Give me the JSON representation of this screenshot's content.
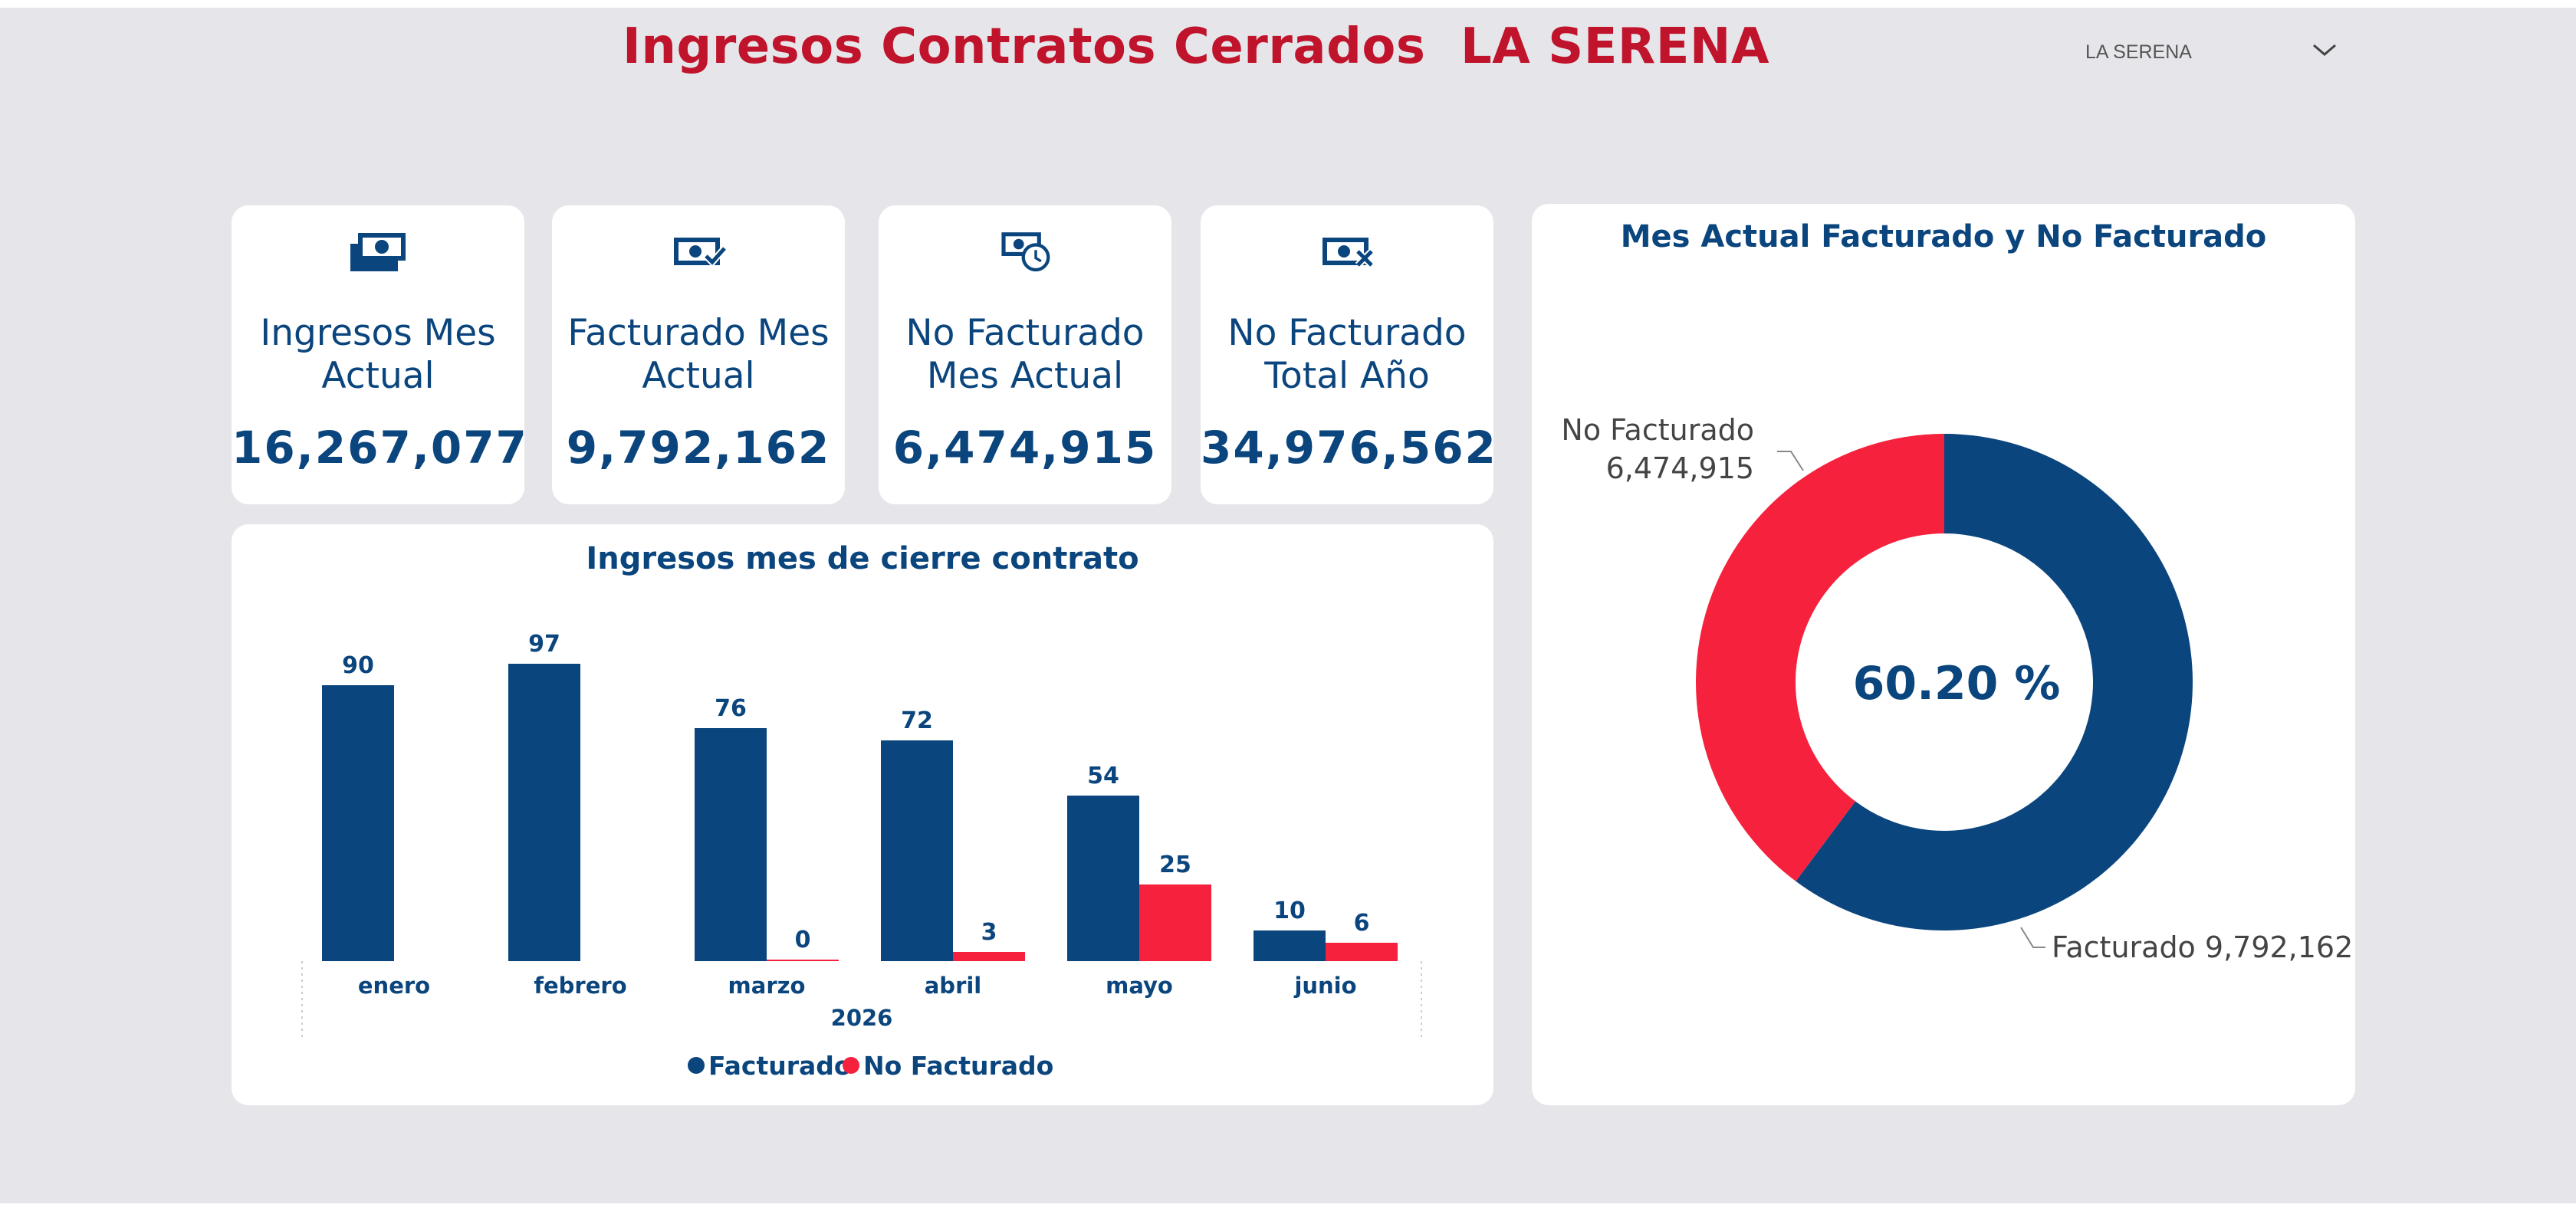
{
  "header": {
    "title": "Ingresos Contratos Cerrados  LA SERENA"
  },
  "slicer": {
    "value": "LA SERENA",
    "icon": "chevron-down-icon"
  },
  "colors": {
    "title": "#c0142c",
    "navy": "#0b457d",
    "red": "#f5213d",
    "background": "#e6e6ea"
  },
  "kpis": [
    {
      "label": "Ingresos Mes Actual",
      "value": "16,267,077",
      "icon": "money-stack-icon"
    },
    {
      "label": "Facturado Mes Actual",
      "value": "9,792,162",
      "icon": "money-check-icon"
    },
    {
      "label": "No Facturado Mes Actual",
      "value": "6,474,915",
      "icon": "money-clock-icon"
    },
    {
      "label": "No Facturado Total Año",
      "value": "34,976,562",
      "icon": "money-x-icon"
    }
  ],
  "chart_data": [
    {
      "type": "bar",
      "title": "Ingresos mes de cierre contrato",
      "categories": [
        "enero",
        "febrero",
        "marzo",
        "abril",
        "mayo",
        "junio"
      ],
      "x_group_label": "2026",
      "series": [
        {
          "name": "Facturado",
          "values": [
            90,
            97,
            76,
            72,
            54,
            10
          ],
          "labels": [
            "90",
            "97",
            "76",
            "72",
            "54",
            "10"
          ],
          "color": "#0b457d"
        },
        {
          "name": "No Facturado",
          "values": [
            null,
            null,
            0,
            3,
            25,
            6
          ],
          "labels": [
            "",
            "",
            "0",
            "3",
            "25",
            "6"
          ],
          "color": "#f5213d"
        }
      ],
      "ylim": [
        0,
        100
      ],
      "legend": "bottom-center",
      "grid": false
    },
    {
      "type": "pie",
      "title": "Mes Actual Facturado y No Facturado",
      "center_label": "60.20 %",
      "slices": [
        {
          "name": "Facturado",
          "value": 9792162,
          "value_label": "9,792,162",
          "color": "#0b457d"
        },
        {
          "name": "No Facturado",
          "value": 6474915,
          "value_label": "6,474,915",
          "color": "#f5213d"
        }
      ]
    }
  ]
}
